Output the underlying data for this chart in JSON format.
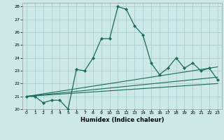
{
  "xlabel": "Humidex (Indice chaleur)",
  "bg_color": "#cce8e8",
  "grid_color": "#aad0d0",
  "line_color": "#1a6b5a",
  "xlim": [
    -0.5,
    23.5
  ],
  "ylim": [
    20,
    28.3
  ],
  "xticks": [
    0,
    1,
    2,
    3,
    4,
    5,
    6,
    7,
    8,
    9,
    10,
    11,
    12,
    13,
    14,
    15,
    16,
    17,
    18,
    19,
    20,
    21,
    22,
    23
  ],
  "yticks": [
    20,
    21,
    22,
    23,
    24,
    25,
    26,
    27,
    28
  ],
  "line_main": {
    "x": [
      0,
      1,
      2,
      3,
      4,
      5,
      6,
      7,
      8,
      9,
      10,
      11,
      12,
      13,
      14,
      15,
      16,
      17,
      18,
      19,
      20,
      21,
      22,
      23
    ],
    "y": [
      21.0,
      21.0,
      20.5,
      20.7,
      20.7,
      20.0,
      23.1,
      23.0,
      24.0,
      25.5,
      25.5,
      28.0,
      27.8,
      26.5,
      25.8,
      23.6,
      22.7,
      23.2,
      24.0,
      23.2,
      23.6,
      23.0,
      23.2,
      22.3
    ]
  },
  "line_a": {
    "x": [
      0,
      23
    ],
    "y": [
      21.0,
      23.3
    ]
  },
  "line_b": {
    "x": [
      0,
      23
    ],
    "y": [
      21.0,
      22.5
    ]
  },
  "line_c": {
    "x": [
      0,
      23
    ],
    "y": [
      21.0,
      22.0
    ]
  }
}
